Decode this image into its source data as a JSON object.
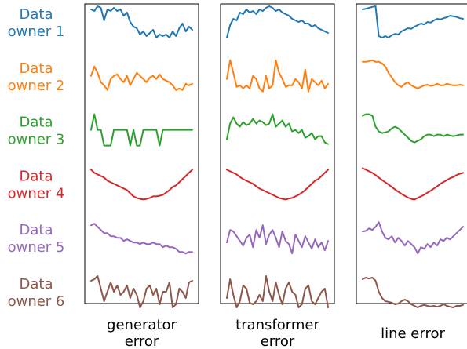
{
  "chart_data": {
    "type": "line",
    "row_labels": [
      {
        "line1": "Data",
        "line2": "owner 1",
        "color": "#1f77b4"
      },
      {
        "line1": "Data",
        "line2": "owner 2",
        "color": "#ff7f0e"
      },
      {
        "line1": "Data",
        "line2": "owner 3",
        "color": "#2ca02c"
      },
      {
        "line1": "Data",
        "line2": "owner 4",
        "color": "#d62728"
      },
      {
        "line1": "Data",
        "line2": "owner 5",
        "color": "#9467bd"
      },
      {
        "line1": "Data",
        "line2": "owner 6",
        "color": "#8c564b"
      }
    ],
    "panels": [
      {
        "title_lines": [
          "generator",
          "error"
        ],
        "series": [
          [
            0.9,
            0.85,
            1.0,
            0.95,
            0.55,
            0.9,
            0.85,
            0.95,
            0.85,
            0.9,
            0.7,
            0.8,
            0.5,
            0.35,
            0.3,
            0.1,
            0.2,
            0.05,
            0.15,
            0.25,
            0.0,
            0.1,
            0.05,
            0.1,
            0.0,
            0.2,
            0.05,
            0.3,
            0.45,
            0.2,
            0.35,
            0.25
          ],
          [
            0.5,
            0.8,
            0.6,
            0.3,
            0.2,
            0.05,
            0.4,
            0.5,
            0.55,
            0.4,
            0.3,
            0.5,
            0.2,
            0.4,
            0.6,
            0.5,
            0.4,
            0.3,
            0.45,
            0.5,
            0.4,
            0.55,
            0.4,
            0.35,
            0.3,
            0.2,
            0.05,
            0.1,
            0.05,
            0.25,
            0.2,
            0.25
          ],
          [
            0.5,
            1.0,
            0.5,
            0.5,
            0.0,
            0.0,
            0.0,
            0.5,
            0.5,
            0.5,
            0.5,
            0.5,
            0.0,
            0.5,
            0.0,
            0.0,
            0.5,
            0.5,
            0.5,
            0.5,
            0.5,
            0.0,
            0.5,
            0.5,
            0.5,
            0.5,
            0.5,
            0.5,
            0.5,
            0.5,
            0.5,
            0.5
          ],
          [
            0.95,
            0.85,
            0.8,
            0.75,
            0.7,
            0.6,
            0.55,
            0.5,
            0.45,
            0.4,
            0.35,
            0.3,
            0.2,
            0.1,
            0.05,
            0.02,
            0.0,
            0.02,
            0.05,
            0.1,
            0.1,
            0.12,
            0.15,
            0.22,
            0.3,
            0.4,
            0.45,
            0.55,
            0.65,
            0.75,
            0.85,
            0.95
          ],
          [
            0.9,
            0.95,
            0.85,
            0.75,
            0.65,
            0.65,
            0.55,
            0.55,
            0.5,
            0.5,
            0.4,
            0.45,
            0.4,
            0.35,
            0.35,
            0.3,
            0.35,
            0.3,
            0.3,
            0.35,
            0.3,
            0.3,
            0.2,
            0.25,
            0.2,
            0.2,
            0.15,
            0.05,
            0.05,
            0.0,
            0.05,
            0.05
          ],
          [
            0.85,
            0.9,
            1.0,
            0.6,
            0.2,
            0.5,
            0.8,
            0.5,
            0.7,
            0.4,
            0.5,
            0.7,
            0.3,
            0.6,
            0.4,
            0.0,
            0.2,
            0.6,
            0.7,
            0.4,
            0.6,
            0.1,
            0.5,
            0.5,
            0.8,
            0.0,
            0.1,
            0.6,
            0.5,
            0.3,
            0.8,
            0.85
          ]
        ]
      },
      {
        "title_lines": [
          "transformer",
          "error"
        ],
        "series": [
          [
            0.0,
            0.4,
            0.6,
            0.55,
            0.8,
            0.75,
            0.9,
            0.8,
            0.85,
            0.75,
            0.9,
            0.85,
            0.95,
            1.0,
            0.95,
            0.85,
            0.9,
            0.8,
            0.75,
            0.7,
            0.6,
            0.55,
            0.5,
            0.55,
            0.45,
            0.45,
            0.35,
            0.4,
            0.3,
            0.25,
            0.2,
            0.15
          ],
          [
            0.4,
            1.0,
            0.6,
            0.15,
            0.2,
            0.1,
            0.2,
            0.1,
            0.5,
            0.4,
            0.1,
            0.0,
            0.5,
            0.1,
            0.2,
            1.0,
            0.6,
            0.4,
            0.15,
            0.2,
            0.2,
            0.4,
            0.3,
            0.1,
            0.7,
            0.0,
            0.4,
            0.3,
            0.2,
            0.35,
            0.1,
            0.25
          ],
          [
            0.2,
            0.7,
            0.9,
            0.7,
            0.6,
            0.75,
            0.65,
            0.7,
            0.85,
            0.7,
            0.8,
            0.75,
            0.65,
            0.7,
            1.0,
            0.6,
            0.7,
            0.8,
            0.6,
            0.7,
            0.45,
            0.5,
            0.4,
            0.5,
            0.25,
            0.3,
            0.4,
            0.2,
            0.3,
            0.3,
            0.1,
            0.05
          ],
          [
            0.95,
            0.9,
            0.85,
            0.8,
            0.72,
            0.65,
            0.6,
            0.55,
            0.5,
            0.42,
            0.35,
            0.3,
            0.25,
            0.2,
            0.15,
            0.1,
            0.05,
            0.02,
            0.0,
            0.03,
            0.05,
            0.1,
            0.15,
            0.22,
            0.3,
            0.4,
            0.5,
            0.6,
            0.65,
            0.75,
            0.85,
            0.95
          ],
          [
            0.35,
            0.75,
            0.7,
            0.55,
            0.4,
            0.25,
            0.5,
            0.6,
            0.2,
            0.75,
            0.5,
            0.9,
            0.3,
            0.6,
            0.75,
            0.5,
            0.2,
            0.7,
            0.4,
            0.3,
            0.0,
            0.6,
            0.4,
            0.2,
            0.55,
            0.35,
            0.15,
            0.45,
            0.2,
            0.35,
            0.1,
            0.4
          ],
          [
            0.3,
            0.9,
            0.4,
            0.0,
            0.2,
            0.7,
            0.6,
            0.15,
            0.1,
            0.2,
            0.4,
            0.2,
            1.0,
            0.5,
            0.2,
            0.8,
            0.4,
            0.1,
            0.6,
            0.8,
            0.5,
            0.4,
            0.0,
            0.1,
            0.6,
            0.7,
            0.2,
            0.1,
            0.3,
            0.5,
            0.6,
            0.0
          ]
        ]
      },
      {
        "title_lines": [
          "line error"
        ],
        "series": [
          [
            0.9,
            0.92,
            0.95,
            0.98,
            1.0,
            0.05,
            0.0,
            0.05,
            0.0,
            0.08,
            0.12,
            0.1,
            0.2,
            0.25,
            0.3,
            0.28,
            0.35,
            0.4,
            0.45,
            0.42,
            0.5,
            0.48,
            0.55,
            0.6,
            0.58,
            0.62,
            0.65,
            0.7,
            0.68,
            0.66,
            0.62,
            0.6
          ],
          [
            0.95,
            0.95,
            0.97,
            1.0,
            0.95,
            0.95,
            0.9,
            0.8,
            0.6,
            0.45,
            0.3,
            0.2,
            0.15,
            0.25,
            0.3,
            0.2,
            0.15,
            0.1,
            0.15,
            0.2,
            0.22,
            0.18,
            0.2,
            0.25,
            0.2,
            0.2,
            0.25,
            0.22,
            0.2,
            0.2,
            0.22,
            0.2
          ],
          [
            0.95,
            1.0,
            1.0,
            0.95,
            0.6,
            0.45,
            0.4,
            0.42,
            0.45,
            0.55,
            0.6,
            0.55,
            0.45,
            0.35,
            0.25,
            0.15,
            0.1,
            0.15,
            0.2,
            0.3,
            0.35,
            0.35,
            0.3,
            0.35,
            0.35,
            0.3,
            0.35,
            0.32,
            0.3,
            0.32,
            0.35,
            0.35
          ],
          [
            1.0,
            0.95,
            0.9,
            0.85,
            0.78,
            0.7,
            0.62,
            0.55,
            0.48,
            0.4,
            0.32,
            0.25,
            0.18,
            0.12,
            0.06,
            0.02,
            0.0,
            0.05,
            0.1,
            0.15,
            0.22,
            0.28,
            0.35,
            0.42,
            0.5,
            0.56,
            0.62,
            0.68,
            0.72,
            0.78,
            0.82,
            0.85
          ],
          [
            0.7,
            0.72,
            0.8,
            0.75,
            0.85,
            1.0,
            0.7,
            0.5,
            0.45,
            0.55,
            0.35,
            0.5,
            0.4,
            0.25,
            0.4,
            0.3,
            0.2,
            0.0,
            0.2,
            0.15,
            0.3,
            0.2,
            0.35,
            0.25,
            0.45,
            0.4,
            0.5,
            0.45,
            0.55,
            0.65,
            0.75,
            0.85
          ],
          [
            0.9,
            0.95,
            0.92,
            0.95,
            0.85,
            0.5,
            0.3,
            0.2,
            0.18,
            0.15,
            0.1,
            0.12,
            0.2,
            0.25,
            0.2,
            0.1,
            0.05,
            0.0,
            0.05,
            0.08,
            0.05,
            0.03,
            0.05,
            0.02,
            0.05,
            0.1,
            0.05,
            0.02,
            0.0,
            0.05,
            0.05,
            0.08
          ]
        ]
      }
    ]
  }
}
